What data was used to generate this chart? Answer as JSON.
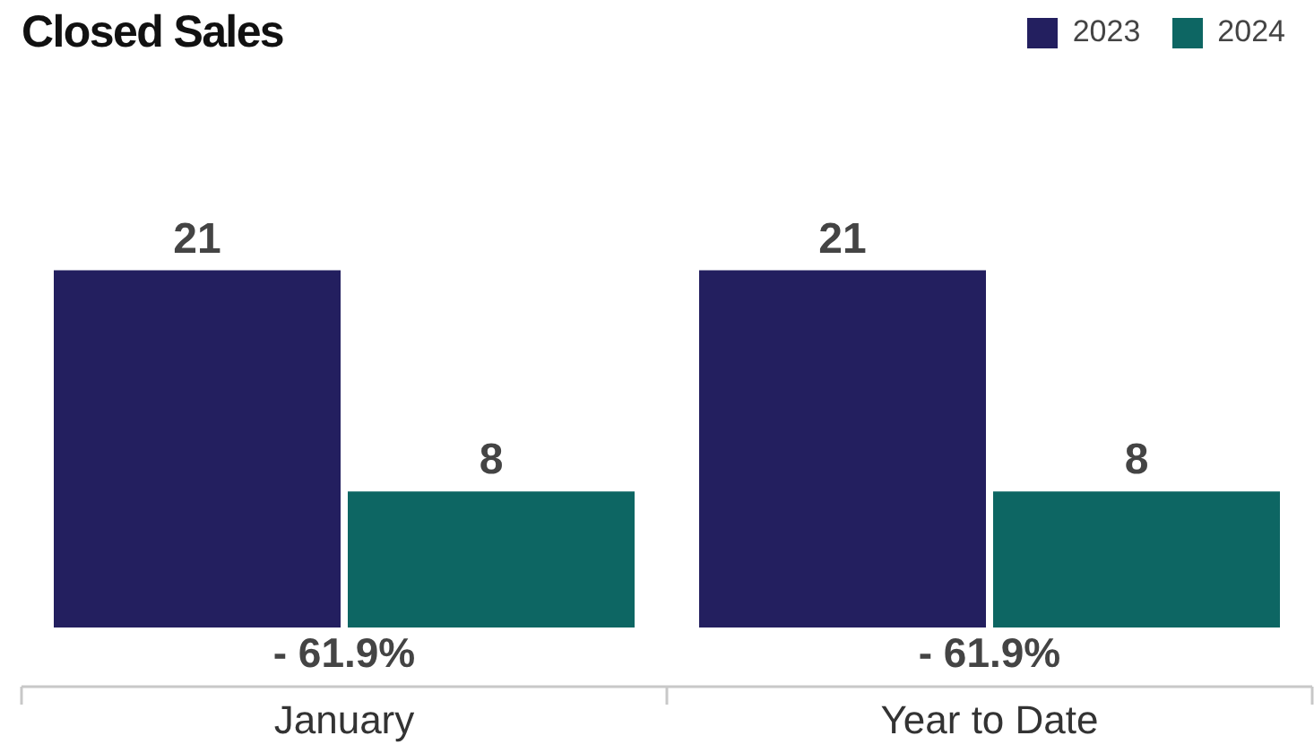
{
  "chart_data": {
    "type": "bar",
    "title": "Closed Sales",
    "categories": [
      "January",
      "Year to Date"
    ],
    "series": [
      {
        "name": "2023",
        "color": "#231f5f",
        "values": [
          21,
          21
        ]
      },
      {
        "name": "2024",
        "color": "#0d6663",
        "values": [
          8,
          8
        ]
      }
    ],
    "data_labels": true,
    "legend": "top right",
    "annotations": [
      "- 61.9%",
      "- 61.9%"
    ]
  }
}
